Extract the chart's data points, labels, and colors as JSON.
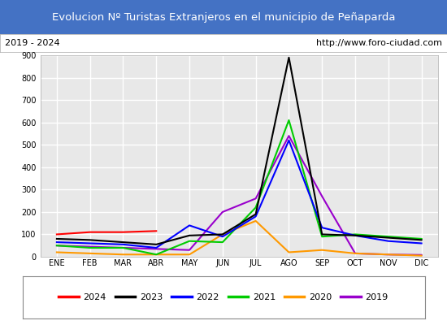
{
  "title": "Evolucion Nº Turistas Extranjeros en el municipio de Peñaparda",
  "subtitle_left": "2019 - 2024",
  "subtitle_right": "http://www.foro-ciudad.com",
  "title_bg_color": "#4472c4",
  "title_text_color": "#ffffff",
  "subtitle_bg_color": "#ffffff",
  "subtitle_text_color": "#000000",
  "plot_bg_color": "#e8e8e8",
  "grid_color": "#ffffff",
  "months": [
    "ENE",
    "FEB",
    "MAR",
    "ABR",
    "MAY",
    "JUN",
    "JUL",
    "AGO",
    "SEP",
    "OCT",
    "NOV",
    "DIC"
  ],
  "series": {
    "2024": {
      "color": "#ff0000",
      "linewidth": 1.5,
      "values": [
        100,
        110,
        110,
        115,
        null,
        null,
        null,
        null,
        null,
        null,
        null,
        null
      ]
    },
    "2023": {
      "color": "#000000",
      "linewidth": 1.5,
      "values": [
        80,
        75,
        65,
        55,
        95,
        100,
        190,
        890,
        100,
        95,
        85,
        75
      ]
    },
    "2022": {
      "color": "#0000ff",
      "linewidth": 1.5,
      "values": [
        65,
        60,
        55,
        40,
        140,
        90,
        180,
        520,
        130,
        95,
        70,
        60
      ]
    },
    "2021": {
      "color": "#00cc00",
      "linewidth": 1.5,
      "values": [
        50,
        40,
        40,
        10,
        70,
        65,
        220,
        610,
        90,
        100,
        90,
        80
      ]
    },
    "2020": {
      "color": "#ff9900",
      "linewidth": 1.5,
      "values": [
        20,
        15,
        10,
        10,
        10,
        100,
        160,
        20,
        30,
        15,
        10,
        5
      ]
    },
    "2019": {
      "color": "#9900cc",
      "linewidth": 1.5,
      "values": [
        50,
        45,
        40,
        35,
        30,
        200,
        260,
        540,
        270,
        15,
        10,
        8
      ]
    }
  },
  "ylim": [
    0,
    900
  ],
  "yticks": [
    0,
    100,
    200,
    300,
    400,
    500,
    600,
    700,
    800,
    900
  ],
  "legend_order": [
    "2024",
    "2023",
    "2022",
    "2021",
    "2020",
    "2019"
  ]
}
